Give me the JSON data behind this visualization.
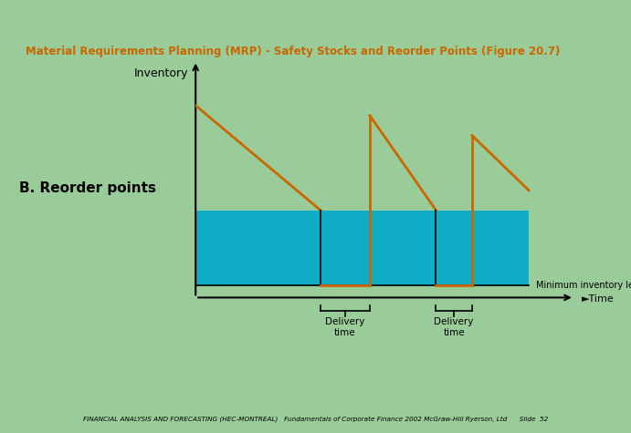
{
  "title": "Material Requirements Planning (MRP) - Safety Stocks and Reorder Points (Figure 20.7)",
  "title_color": "#CC6600",
  "bg_color": "#99CC99",
  "header_bar_color": "#336699",
  "header_bar2_color": "#6699CC",
  "footer_bg": "#CCCCAA",
  "footer_text": "FINANCIAL ANALYSIS AND FORECASTING (HEC-MONTREAL)   Fundamentals of Corporate Finance 2002 McGraw-Hill Ryerson, Ltd      Slide  52",
  "label_inventory": "Inventory",
  "label_reorder": "B. Reorder points",
  "label_time": "►Time",
  "label_min_inv": "Minimum inventory level",
  "label_delivery": "Delivery\ntime",
  "orange_color": "#CC6600",
  "teal_color": "#00AACC",
  "saw_color": "#CC6600"
}
